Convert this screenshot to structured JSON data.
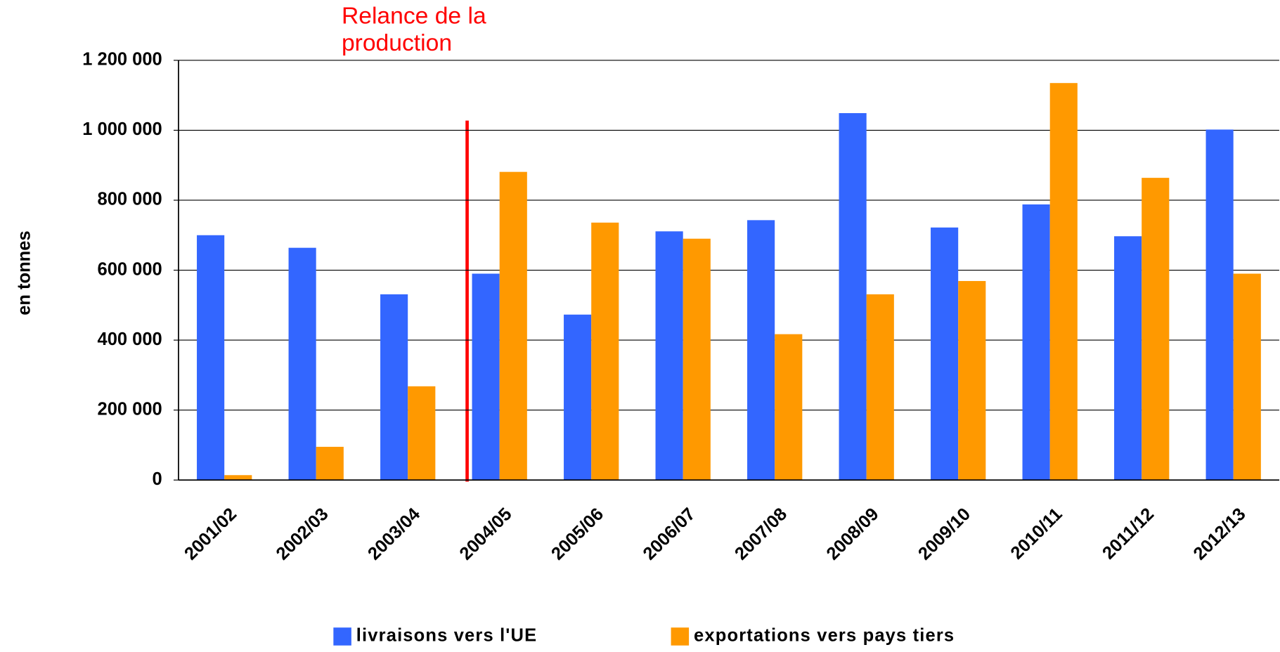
{
  "chart_data": {
    "type": "bar",
    "annotation": "Relance de la production",
    "y_label": "en tonnes",
    "categories": [
      "2001/02",
      "2002/03",
      "2003/04",
      "2004/05",
      "2005/06",
      "2006/07",
      "2007/08",
      "2008/09",
      "2009/10",
      "2010/11",
      "2011/12",
      "2012/13"
    ],
    "series": [
      {
        "name": "livraisons vers l'UE",
        "color": "#3366ff",
        "values": [
          700000,
          664000,
          531000,
          590000,
          473000,
          711000,
          743000,
          1049000,
          722000,
          788000,
          697000,
          1002000
        ]
      },
      {
        "name": "exportations vers pays tiers",
        "color": "#ff9900",
        "values": [
          14000,
          95000,
          268000,
          881000,
          736000,
          690000,
          417000,
          531000,
          569000,
          1135000,
          864000,
          590000
        ]
      }
    ],
    "ylim": [
      0,
      1200000
    ],
    "yticks": [
      0,
      {
        "value": 200000,
        "label": "200 000"
      },
      {
        "value": 400000,
        "label": "400 000"
      },
      {
        "value": 600000,
        "label": "600 000"
      },
      {
        "value": 800000,
        "label": "800 000"
      },
      {
        "value": 1000000,
        "label": "1 000 000"
      },
      {
        "value": 1200000,
        "label": "1 200 000"
      }
    ],
    "grid": true,
    "legend": "bottom"
  }
}
